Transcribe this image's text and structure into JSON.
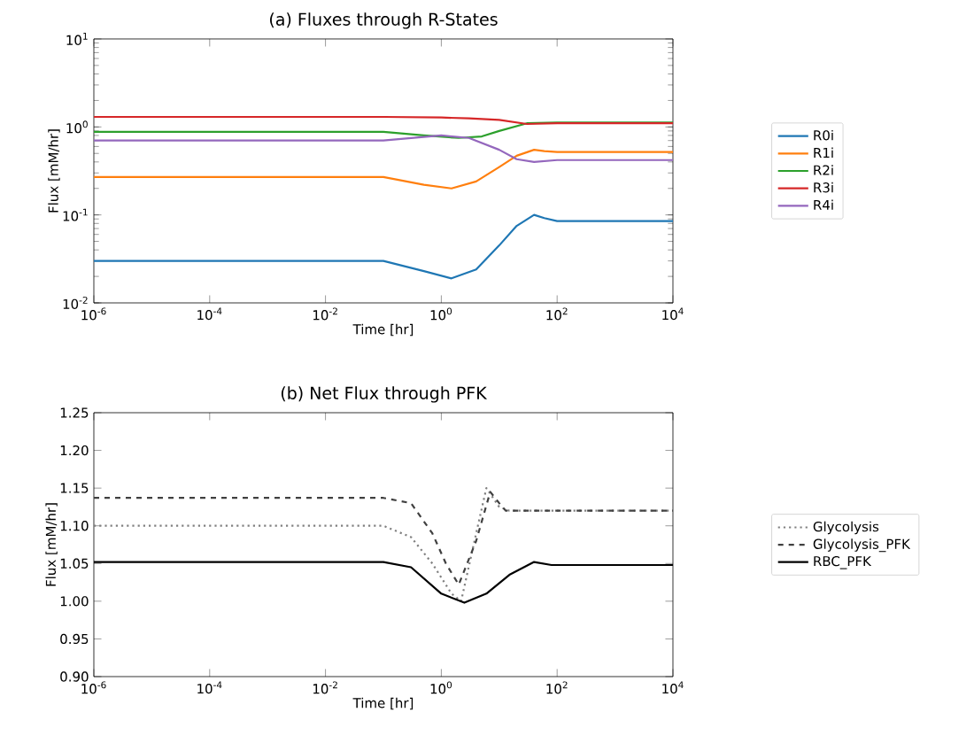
{
  "chart_data": [
    {
      "type": "line",
      "title": "(a) Fluxes through R-States",
      "xlabel": "Time [hr]",
      "ylabel": "Flux [mM/hr]",
      "log": "xy",
      "legend": "right",
      "xlim": [
        1e-06,
        10000
      ],
      "ylim": [
        0.01,
        10
      ],
      "xticks": [
        {
          "value": 1e-06,
          "label": "10$^{-6}$"
        },
        {
          "value": 0.0001,
          "label": "10$^{-4}$"
        },
        {
          "value": 0.01,
          "label": "10$^{-2}$"
        },
        {
          "value": 1,
          "label": "10$^{0}$"
        },
        {
          "value": 100,
          "label": "10$^{2}$"
        },
        {
          "value": 10000,
          "label": "10$^{4}$"
        }
      ],
      "yticks": [
        {
          "value": 0.01,
          "label": "10$^{-2}$"
        },
        {
          "value": 0.1,
          "label": "10$^{-1}$"
        },
        {
          "value": 1,
          "label": "10$^{0}$"
        },
        {
          "value": 10,
          "label": "10$^{1}$"
        }
      ],
      "series": [
        {
          "name": "R0i",
          "color": "#1f77b4",
          "x": [
            1e-06,
            0.1,
            0.5,
            1.5,
            4,
            10,
            20,
            40,
            60,
            100,
            10000
          ],
          "values": [
            0.03,
            0.03,
            0.023,
            0.019,
            0.024,
            0.045,
            0.075,
            0.1,
            0.092,
            0.085,
            0.085
          ]
        },
        {
          "name": "R1i",
          "color": "#ff7f0e",
          "x": [
            1e-06,
            0.1,
            0.5,
            1.5,
            4,
            10,
            20,
            40,
            60,
            100,
            10000
          ],
          "values": [
            0.27,
            0.27,
            0.22,
            0.2,
            0.24,
            0.35,
            0.47,
            0.55,
            0.53,
            0.52,
            0.52
          ]
        },
        {
          "name": "R2i",
          "color": "#2ca02c",
          "x": [
            1e-06,
            0.1,
            0.5,
            2,
            5,
            10,
            30,
            100,
            10000
          ],
          "values": [
            0.88,
            0.88,
            0.8,
            0.75,
            0.78,
            0.9,
            1.1,
            1.12,
            1.12
          ]
        },
        {
          "name": "R3i",
          "color": "#d62728",
          "x": [
            1e-06,
            0.1,
            1,
            3,
            10,
            30,
            100,
            10000
          ],
          "values": [
            1.3,
            1.3,
            1.28,
            1.25,
            1.2,
            1.08,
            1.1,
            1.1
          ]
        },
        {
          "name": "R4i",
          "color": "#9467bd",
          "x": [
            1e-06,
            0.1,
            1,
            3,
            10,
            20,
            40,
            100,
            10000
          ],
          "values": [
            0.7,
            0.7,
            0.8,
            0.75,
            0.55,
            0.43,
            0.4,
            0.42,
            0.42
          ]
        }
      ]
    },
    {
      "type": "line",
      "title": "(b) Net Flux through PFK",
      "xlabel": "Time [hr]",
      "ylabel": "Flux [mM/hr]",
      "log": "x",
      "legend": "right",
      "xlim": [
        1e-06,
        10000
      ],
      "ylim": [
        0.9,
        1.25
      ],
      "xticks": [
        {
          "value": 1e-06,
          "label": "10$^{-6}$"
        },
        {
          "value": 0.0001,
          "label": "10$^{-4}$"
        },
        {
          "value": 0.01,
          "label": "10$^{-2}$"
        },
        {
          "value": 1,
          "label": "10$^{0}$"
        },
        {
          "value": 100,
          "label": "10$^{2}$"
        },
        {
          "value": 10000,
          "label": "10$^{4}$"
        }
      ],
      "yticks": [
        {
          "value": 0.9,
          "label": "0.90"
        },
        {
          "value": 0.95,
          "label": "0.95"
        },
        {
          "value": 1.0,
          "label": "1.00"
        },
        {
          "value": 1.05,
          "label": "1.05"
        },
        {
          "value": 1.1,
          "label": "1.10"
        },
        {
          "value": 1.15,
          "label": "1.15"
        },
        {
          "value": 1.2,
          "label": "1.20"
        },
        {
          "value": 1.25,
          "label": "1.25"
        }
      ],
      "series": [
        {
          "name": "Glycolysis",
          "color": "#808080",
          "line_style": "dotted",
          "x": [
            1e-06,
            0.1,
            0.3,
            0.7,
            1.5,
            2.2,
            4,
            6,
            10,
            15,
            10000
          ],
          "values": [
            1.1,
            1.1,
            1.085,
            1.05,
            1.01,
            1.0,
            1.09,
            1.15,
            1.125,
            1.12,
            1.12
          ]
        },
        {
          "name": "Glycolysis_PFK",
          "color": "#404040",
          "line_style": "dashed",
          "x": [
            1e-06,
            0.1,
            0.3,
            0.7,
            1.2,
            2,
            4,
            7,
            10,
            13,
            10000
          ],
          "values": [
            1.137,
            1.137,
            1.13,
            1.09,
            1.05,
            1.022,
            1.08,
            1.145,
            1.13,
            1.12,
            1.12
          ]
        },
        {
          "name": "RBC_PFK",
          "color": "#000000",
          "line_style": "solid",
          "x": [
            1e-06,
            0.1,
            0.3,
            1,
            2.5,
            6,
            15,
            40,
            80,
            10000
          ],
          "values": [
            1.052,
            1.052,
            1.045,
            1.01,
            0.998,
            1.01,
            1.035,
            1.052,
            1.048,
            1.048
          ]
        }
      ]
    }
  ]
}
